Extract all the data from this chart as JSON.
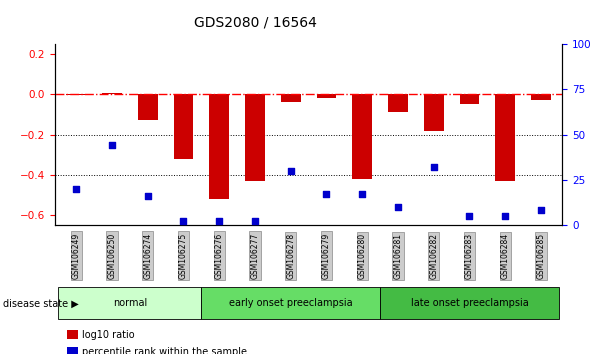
{
  "title": "GDS2080 / 16564",
  "samples": [
    "GSM106249",
    "GSM106250",
    "GSM106274",
    "GSM106275",
    "GSM106276",
    "GSM106277",
    "GSM106278",
    "GSM106279",
    "GSM106280",
    "GSM106281",
    "GSM106282",
    "GSM106283",
    "GSM106284",
    "GSM106285"
  ],
  "log10_ratio": [
    -0.005,
    0.005,
    -0.13,
    -0.32,
    -0.52,
    -0.43,
    -0.04,
    -0.02,
    -0.42,
    -0.09,
    -0.18,
    -0.05,
    -0.43,
    -0.03
  ],
  "percentile_rank": [
    20,
    44,
    16,
    2,
    2,
    2,
    30,
    17,
    17,
    10,
    32,
    5,
    5,
    8
  ],
  "ylim_left": [
    -0.65,
    0.25
  ],
  "ylim_right": [
    0,
    100
  ],
  "yticks_left": [
    -0.6,
    -0.4,
    -0.2,
    0.0,
    0.2
  ],
  "yticks_right": [
    0,
    25,
    50,
    75,
    100
  ],
  "bar_color": "#cc0000",
  "dot_color": "#0000cc",
  "dotted_lines": [
    -0.2,
    -0.4
  ],
  "groups": [
    {
      "label": "normal",
      "start": 0,
      "end": 4,
      "color": "#ccffcc"
    },
    {
      "label": "early onset preeclampsia",
      "start": 4,
      "end": 9,
      "color": "#66dd66"
    },
    {
      "label": "late onset preeclampsia",
      "start": 9,
      "end": 14,
      "color": "#44bb44"
    }
  ],
  "legend_items": [
    {
      "label": "log10 ratio",
      "color": "#cc0000"
    },
    {
      "label": "percentile rank within the sample",
      "color": "#0000cc"
    }
  ],
  "disease_state_label": "disease state",
  "xlabel_bg": "#cccccc",
  "xlabel_edge": "#888888"
}
